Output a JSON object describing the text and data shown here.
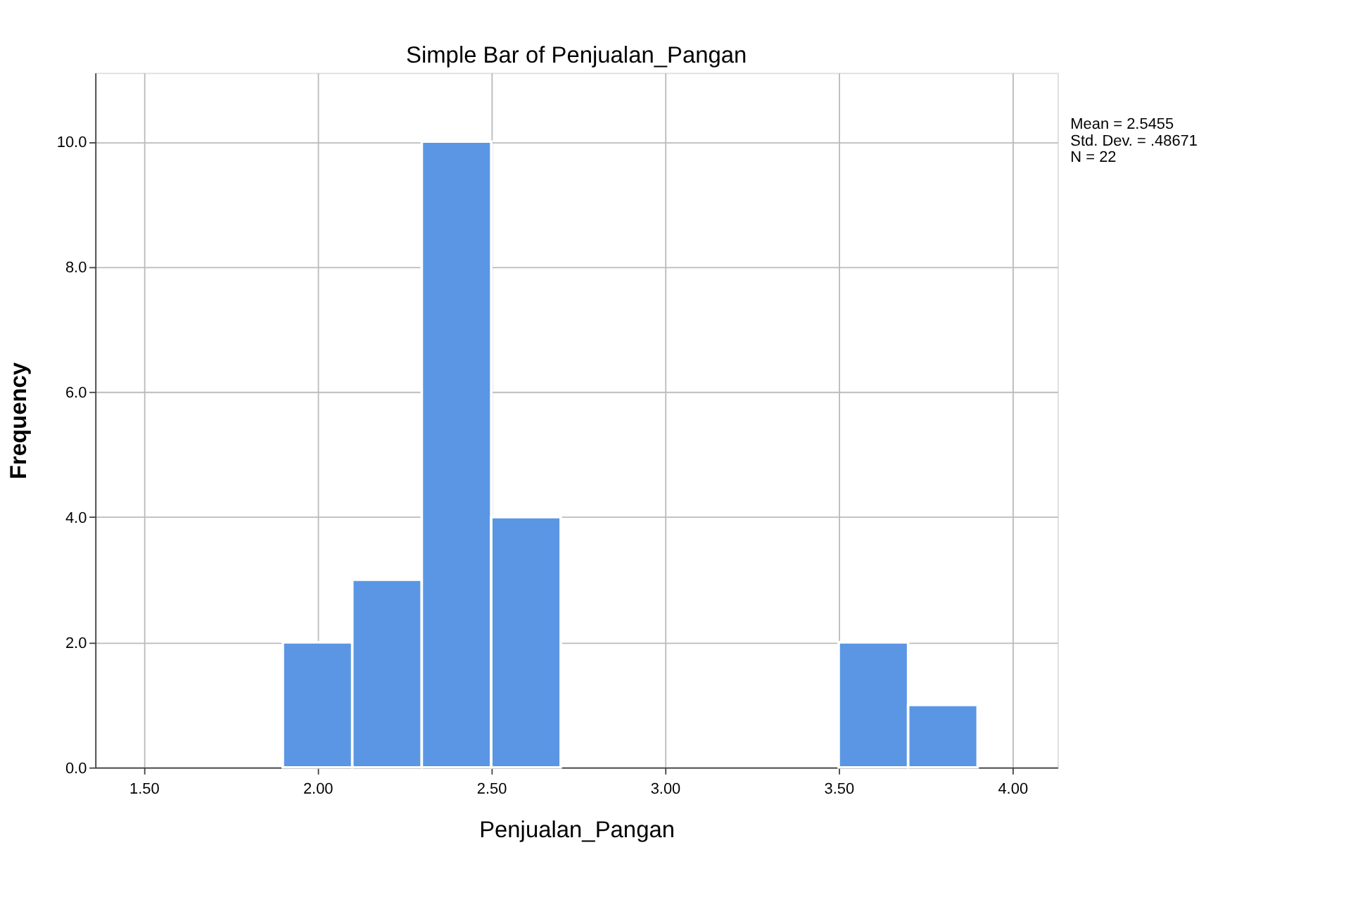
{
  "chart_data": {
    "type": "histogram",
    "title": "Simple Bar of Penjualan_Pangan",
    "xlabel": "Penjualan_Pangan",
    "ylabel": "Frequency",
    "bins": [
      1.9,
      2.1,
      2.3,
      2.5,
      2.7,
      2.9,
      3.1,
      3.3,
      3.5,
      3.7,
      3.9
    ],
    "values": [
      2,
      3,
      10,
      4,
      0,
      0,
      0,
      0,
      2,
      1
    ],
    "color": "#5a96e3",
    "xlim": [
      1.36,
      4.13
    ],
    "ylim": [
      0,
      11.1
    ],
    "xticks": [
      {
        "value": 1.5,
        "label": "1.50"
      },
      {
        "value": 2.0,
        "label": "2.00"
      },
      {
        "value": 2.5,
        "label": "2.50"
      },
      {
        "value": 3.0,
        "label": "3.00"
      },
      {
        "value": 3.5,
        "label": "3.50"
      },
      {
        "value": 4.0,
        "label": "4.00"
      }
    ],
    "yticks": [
      {
        "value": 0,
        "label": "0.0"
      },
      {
        "value": 2,
        "label": "2.0"
      },
      {
        "value": 4,
        "label": "4.0"
      },
      {
        "value": 6,
        "label": "6.0"
      },
      {
        "value": 8,
        "label": "8.0"
      },
      {
        "value": 10,
        "label": "10.0"
      }
    ],
    "grid": true,
    "legend": false,
    "annotations": [
      "Mean = 2.5455",
      "Std. Dev. = .48671",
      "N = 22"
    ]
  }
}
